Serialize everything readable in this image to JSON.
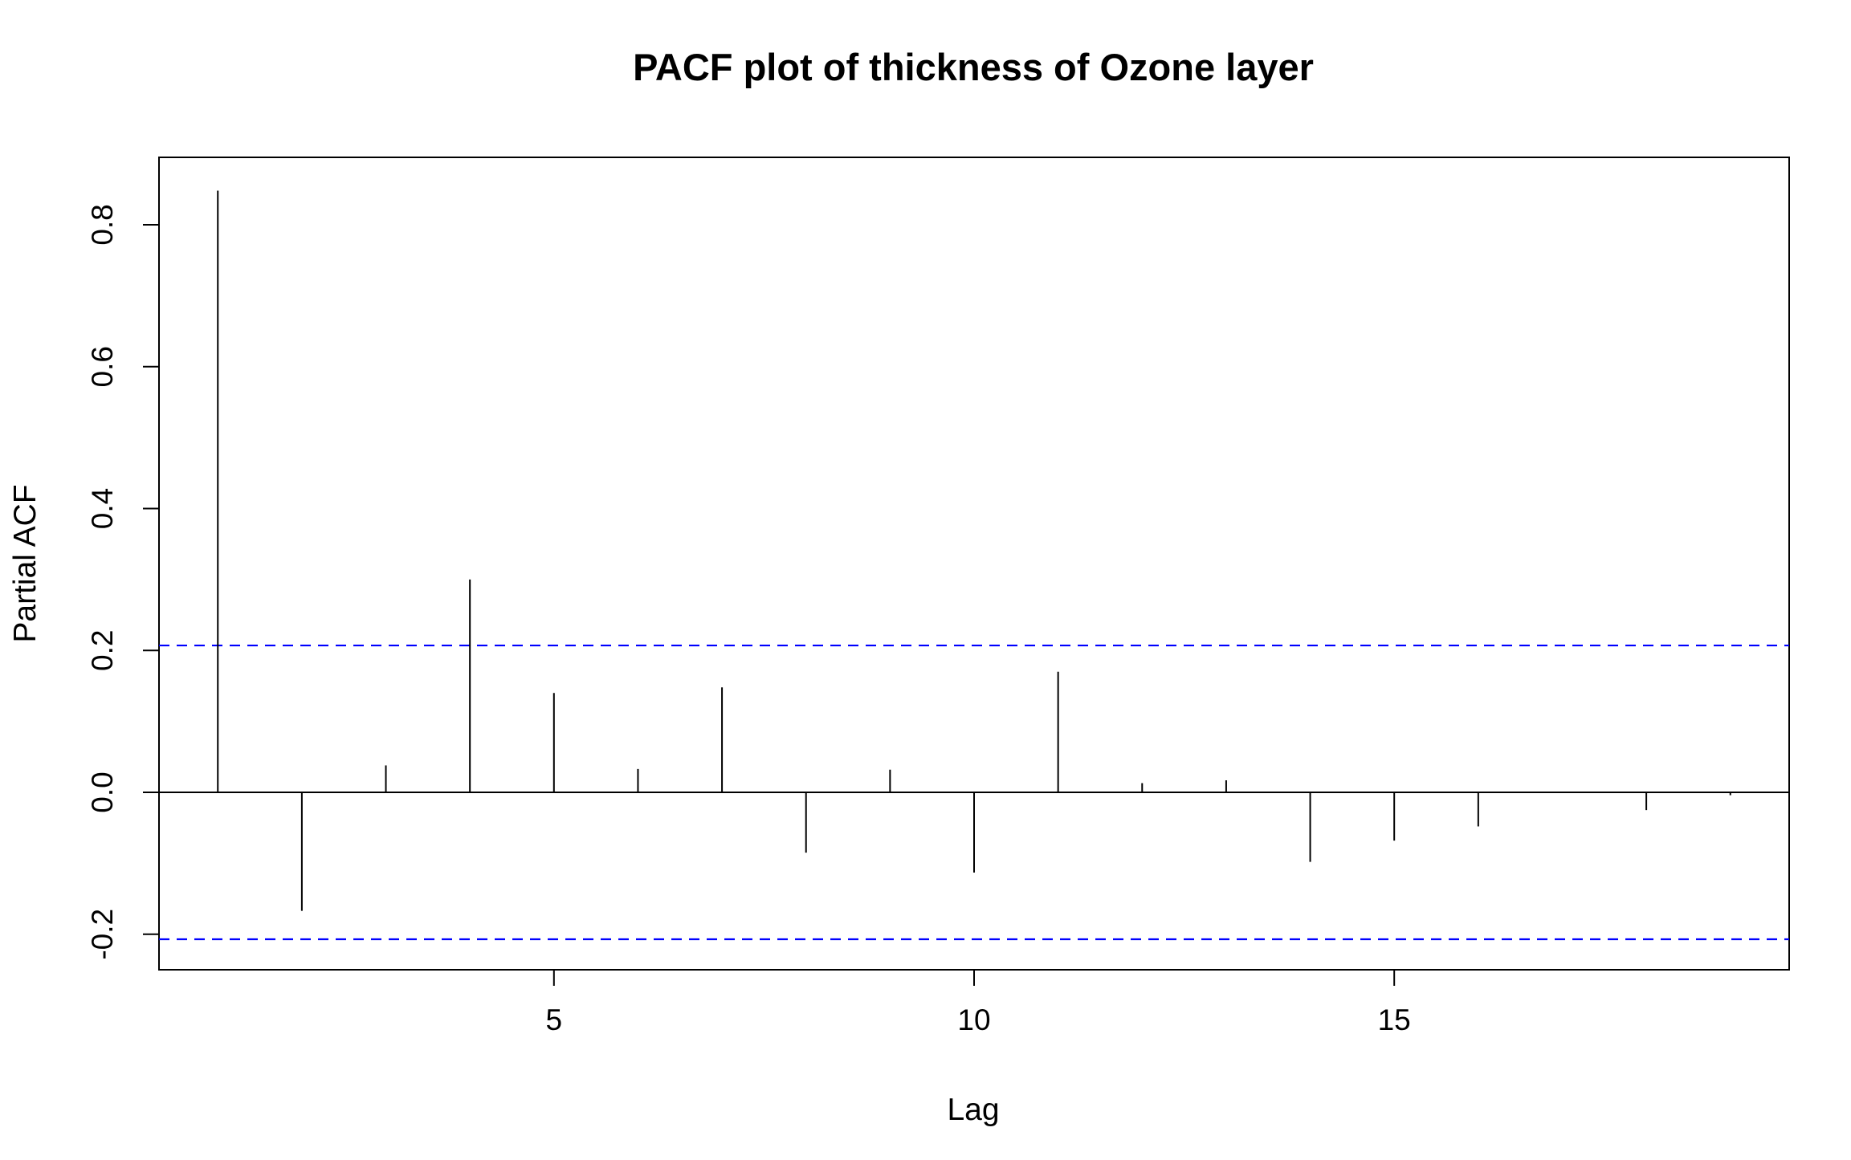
{
  "chart_data": {
    "type": "bar",
    "title": "PACF plot of thickness of Ozone layer",
    "xlabel": "Lag",
    "ylabel": "Partial ACF",
    "xlim": [
      0.3,
      19.7
    ],
    "ylim": [
      -0.25,
      0.895
    ],
    "x_ticks": [
      {
        "value": 5,
        "label": "5"
      },
      {
        "value": 10,
        "label": "10"
      },
      {
        "value": 15,
        "label": "15"
      }
    ],
    "y_ticks": [
      {
        "value": -0.2,
        "label": "-0.2"
      },
      {
        "value": 0.0,
        "label": "0.0"
      },
      {
        "value": 0.2,
        "label": "0.2"
      },
      {
        "value": 0.4,
        "label": "0.4"
      },
      {
        "value": 0.6,
        "label": "0.6"
      },
      {
        "value": 0.8,
        "label": "0.8"
      }
    ],
    "lags": [
      1,
      2,
      3,
      4,
      5,
      6,
      7,
      8,
      9,
      10,
      11,
      12,
      13,
      14,
      15,
      16,
      17,
      18,
      19
    ],
    "values": [
      0.848,
      -0.167,
      0.038,
      0.3,
      0.14,
      0.033,
      0.148,
      -0.085,
      0.032,
      -0.113,
      0.17,
      0.013,
      0.017,
      -0.098,
      -0.068,
      -0.048,
      0.001,
      -0.025,
      -0.004
    ],
    "confidence_bound": 0.207,
    "grid": false,
    "colors": {
      "bars": "#000000",
      "confidence_lines": "#0000ff",
      "zero_line": "#000000"
    }
  }
}
